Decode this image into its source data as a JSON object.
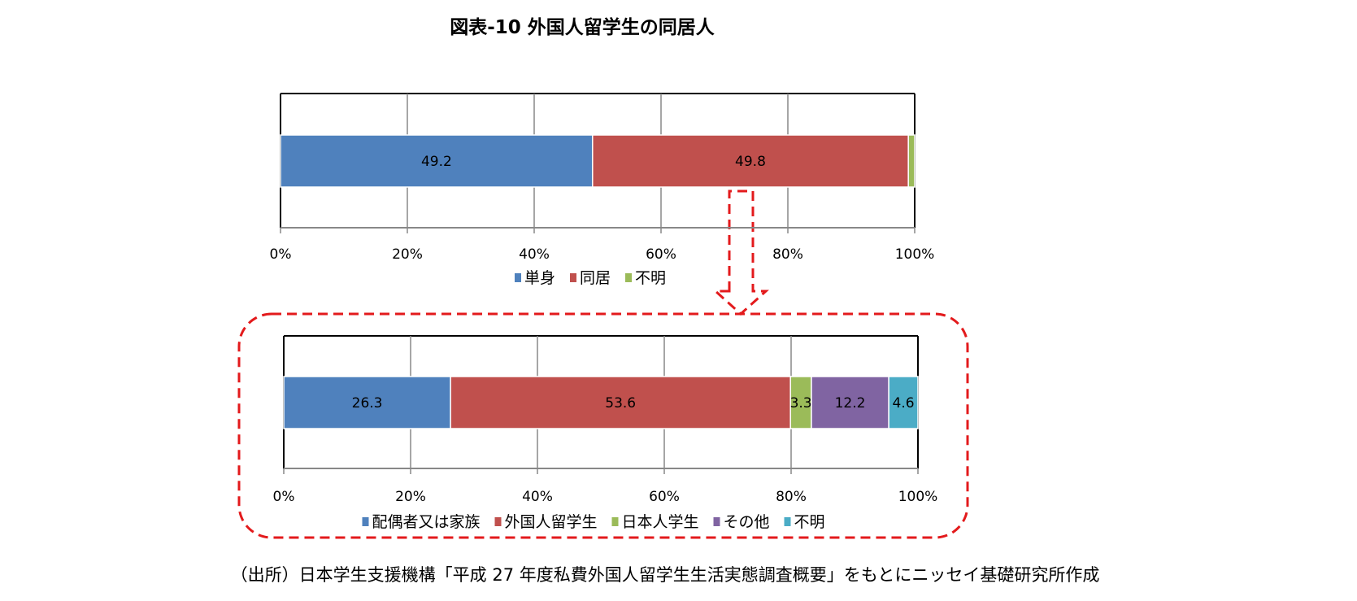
{
  "title": "図表-10  外国人留学生の同居人",
  "source": "（出所）日本学生支援機構「平成 27 年度私費外国人留学生生活実態調査概要」をもとにニッセイ基礎研究所作成",
  "chart_data": [
    {
      "type": "bar",
      "orientation": "horizontal",
      "stacked": "percent",
      "xlim": [
        0,
        100
      ],
      "ticks": [
        "0%",
        "20%",
        "40%",
        "60%",
        "80%",
        "100%"
      ],
      "grid": true,
      "legend_position": "bottom",
      "series": [
        {
          "name": "単身",
          "value": 49.2,
          "label": "49.2",
          "color": "#4f81bd"
        },
        {
          "name": "同居",
          "value": 49.8,
          "label": "49.8",
          "color": "#c0504d"
        },
        {
          "name": "不明",
          "value": 1.0,
          "label": "",
          "color": "#9bbb59"
        }
      ]
    },
    {
      "type": "bar",
      "orientation": "horizontal",
      "stacked": "percent",
      "xlim": [
        0,
        100
      ],
      "ticks": [
        "0%",
        "20%",
        "40%",
        "60%",
        "80%",
        "100%"
      ],
      "grid": true,
      "legend_position": "bottom",
      "series": [
        {
          "name": "配偶者又は家族",
          "value": 26.3,
          "label": "26.3",
          "color": "#4f81bd"
        },
        {
          "name": "外国人留学生",
          "value": 53.6,
          "label": "53.6",
          "color": "#c0504d"
        },
        {
          "name": "日本人学生",
          "value": 3.3,
          "label": "3.3",
          "color": "#9bbb59"
        },
        {
          "name": "その他",
          "value": 12.2,
          "label": "12.2",
          "color": "#8064a2"
        },
        {
          "name": "不明",
          "value": 4.6,
          "label": "4.6",
          "color": "#4bacc6"
        }
      ]
    }
  ],
  "annotation_color": "#e31a1c"
}
